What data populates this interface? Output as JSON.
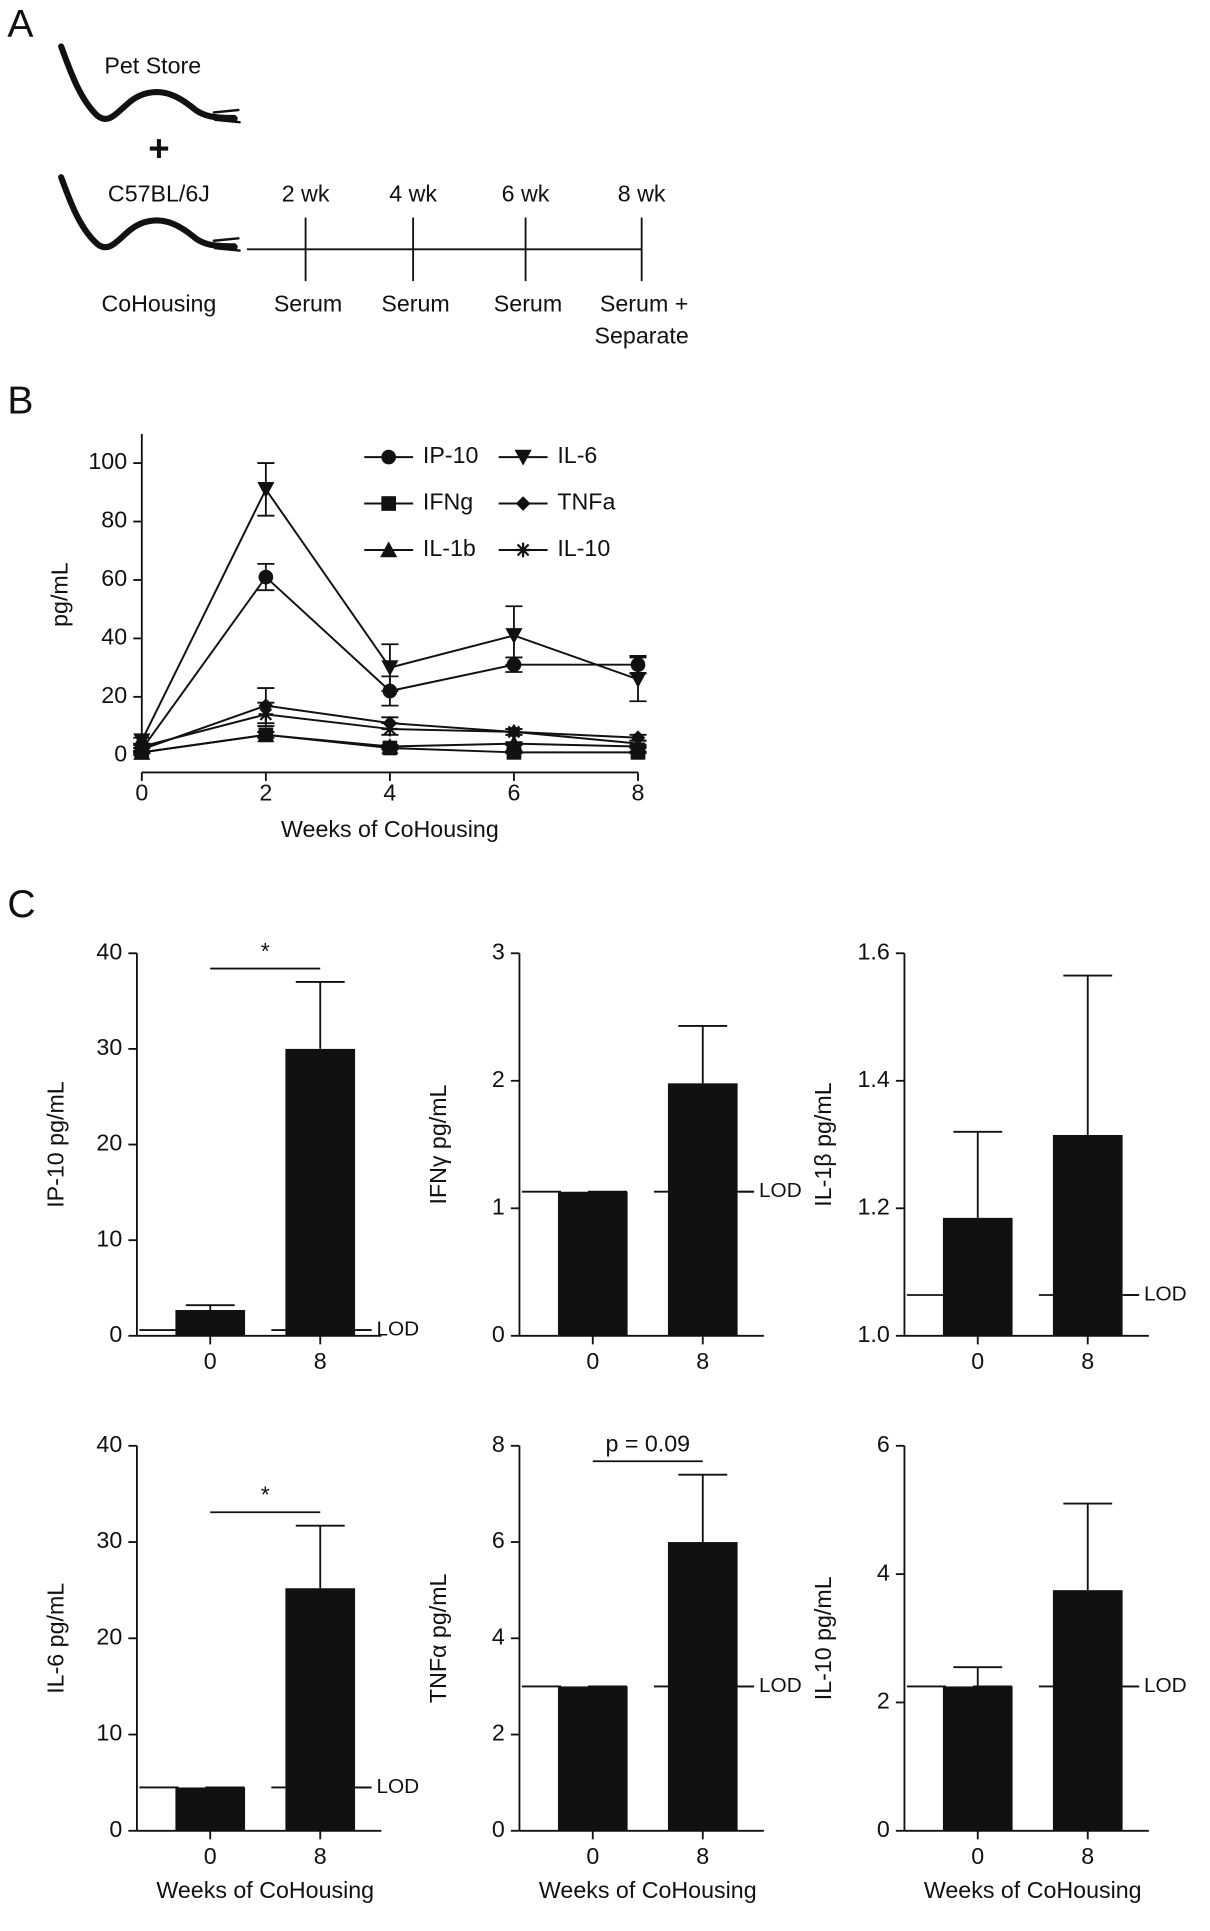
{
  "panels": [
    "A",
    "B",
    "C"
  ],
  "diagram": {
    "top_mouse": "Pet Store",
    "plus": "+",
    "bottom_mouse": "C57BL/6J",
    "caption": "CoHousing",
    "timepoints": [
      "2 wk",
      "4 wk",
      "6 wk",
      "8 wk"
    ],
    "samples": [
      "Serum",
      "Serum",
      "Serum",
      "Serum +"
    ],
    "final_note": "Separate"
  },
  "chart_data": [
    {
      "type": "line",
      "ylabel": "pg/mL",
      "xlabel": "Weeks of CoHousing",
      "x": [
        0,
        2,
        4,
        6,
        8
      ],
      "xlim": [
        0,
        8
      ],
      "xticks": [
        0,
        2,
        4,
        6,
        8
      ],
      "ylim": [
        0,
        110
      ],
      "yticks": [
        0,
        20,
        40,
        60,
        80,
        100
      ],
      "series": [
        {
          "name": "IP-10",
          "marker": "circle",
          "color": "#111111",
          "values": [
            2,
            61,
            22,
            31,
            31
          ],
          "errors": [
            0.5,
            4.5,
            5,
            2.5,
            3
          ]
        },
        {
          "name": "IL-6",
          "marker": "triangle-down",
          "color": "#111111",
          "values": [
            5,
            91,
            30,
            41,
            26
          ],
          "errors": [
            1,
            9,
            8,
            10,
            7.5
          ]
        },
        {
          "name": "IFNg",
          "marker": "square",
          "color": "#111111",
          "values": [
            1,
            7,
            2.5,
            1,
            1
          ],
          "errors": [
            0.3,
            1,
            0.5,
            0.3,
            0.3
          ]
        },
        {
          "name": "TNFa",
          "marker": "diamond",
          "color": "#111111",
          "values": [
            2,
            17,
            11,
            8,
            6
          ],
          "errors": [
            0.5,
            6,
            2,
            1,
            1
          ]
        },
        {
          "name": "IL-1b",
          "marker": "triangle-up",
          "color": "#111111",
          "values": [
            1,
            7,
            3,
            4,
            3
          ],
          "errors": [
            0.3,
            1,
            0.5,
            0.5,
            0.5
          ]
        },
        {
          "name": "IL-10",
          "marker": "star",
          "color": "#111111",
          "values": [
            3,
            14,
            9,
            8,
            4
          ],
          "errors": [
            0.5,
            4,
            2,
            1,
            1
          ]
        }
      ]
    },
    {
      "type": "bar",
      "ylabel": "IP-10 pg/mL",
      "categories": [
        "0",
        "8"
      ],
      "values": [
        2.7,
        30
      ],
      "errors": [
        0.5,
        7
      ],
      "lod": 0.6,
      "lod_label": "LOD",
      "annotation": "*",
      "color": "#111111",
      "ylim": [
        0,
        40
      ],
      "yticks": [
        0,
        10,
        20,
        30,
        40
      ]
    },
    {
      "type": "bar",
      "ylabel": "IFNγ pg/mL",
      "categories": [
        "0",
        "8"
      ],
      "values": [
        1.13,
        1.98
      ],
      "errors": [
        null,
        0.45
      ],
      "lod": 1.13,
      "lod_label": "LOD",
      "color": "#111111",
      "ylim": [
        0,
        3
      ],
      "yticks": [
        0,
        1,
        2,
        3
      ]
    },
    {
      "type": "bar",
      "ylabel": "IL-1β pg/mL",
      "categories": [
        "0",
        "8"
      ],
      "values": [
        1.185,
        1.315
      ],
      "errors": [
        0.135,
        0.25
      ],
      "lod": 1.064,
      "lod_label": "LOD",
      "color": "#111111",
      "ylim": [
        1,
        1.6
      ],
      "yticks": [
        {
          "value": 1,
          "label": "1.0"
        },
        1.2,
        1.4,
        1.6
      ]
    },
    {
      "type": "bar",
      "ylabel": "IL-6 pg/mL",
      "xlabel": "Weeks of CoHousing",
      "categories": [
        "0",
        "8"
      ],
      "values": [
        4.5,
        25.2
      ],
      "errors": [
        null,
        6.5
      ],
      "lod": 4.5,
      "lod_label": "LOD",
      "annotation": "*",
      "color": "#111111",
      "ylim": [
        0,
        40
      ],
      "yticks": [
        0,
        10,
        20,
        30,
        40
      ]
    },
    {
      "type": "bar",
      "ylabel": "TNFα pg/mL",
      "xlabel": "Weeks of CoHousing",
      "categories": [
        "0",
        "8"
      ],
      "values": [
        3,
        6
      ],
      "errors": [
        null,
        1.4
      ],
      "lod": 3,
      "lod_label": "LOD",
      "annotation": "p = 0.09",
      "color": "#111111",
      "ylim": [
        0,
        8
      ],
      "yticks": [
        0,
        2,
        4,
        6,
        8
      ]
    },
    {
      "type": "bar",
      "ylabel": "IL-10 pg/mL",
      "xlabel": "Weeks of CoHousing",
      "categories": [
        "0",
        "8"
      ],
      "values": [
        2.25,
        3.75
      ],
      "errors": [
        0.3,
        1.35
      ],
      "lod": 2.25,
      "lod_label": "LOD",
      "color": "#111111",
      "ylim": [
        0,
        6
      ],
      "yticks": [
        0,
        2,
        4,
        6
      ]
    }
  ]
}
